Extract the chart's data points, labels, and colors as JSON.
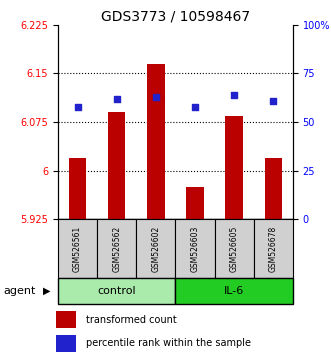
{
  "title": "GDS3773 / 10598467",
  "samples": [
    "GSM526561",
    "GSM526562",
    "GSM526602",
    "GSM526603",
    "GSM526605",
    "GSM526678"
  ],
  "bar_values": [
    6.02,
    6.09,
    6.165,
    5.975,
    6.085,
    6.02
  ],
  "percentile_values": [
    58,
    62,
    63,
    58,
    64,
    61
  ],
  "ylim_left": [
    5.925,
    6.225
  ],
  "ylim_right": [
    0,
    100
  ],
  "yticks_left": [
    5.925,
    6.0,
    6.075,
    6.15,
    6.225
  ],
  "yticks_right": [
    0,
    25,
    50,
    75,
    100
  ],
  "ytick_labels_left": [
    "5.925",
    "6",
    "6.075",
    "6.15",
    "6.225"
  ],
  "ytick_labels_right": [
    "0",
    "25",
    "50",
    "75",
    "100%"
  ],
  "grid_lines": [
    6.0,
    6.075,
    6.15
  ],
  "bar_color": "#BB0000",
  "dot_color": "#2222CC",
  "control_color": "#AAEAAA",
  "il6_color": "#22CC22",
  "sample_box_color": "#D0D0D0",
  "title_fontsize": 10,
  "tick_fontsize": 7,
  "sample_fontsize": 5.5,
  "group_fontsize": 8,
  "legend_fontsize": 7,
  "agent_label": "agent",
  "legend_bar_label": "transformed count",
  "legend_dot_label": "percentile rank within the sample"
}
